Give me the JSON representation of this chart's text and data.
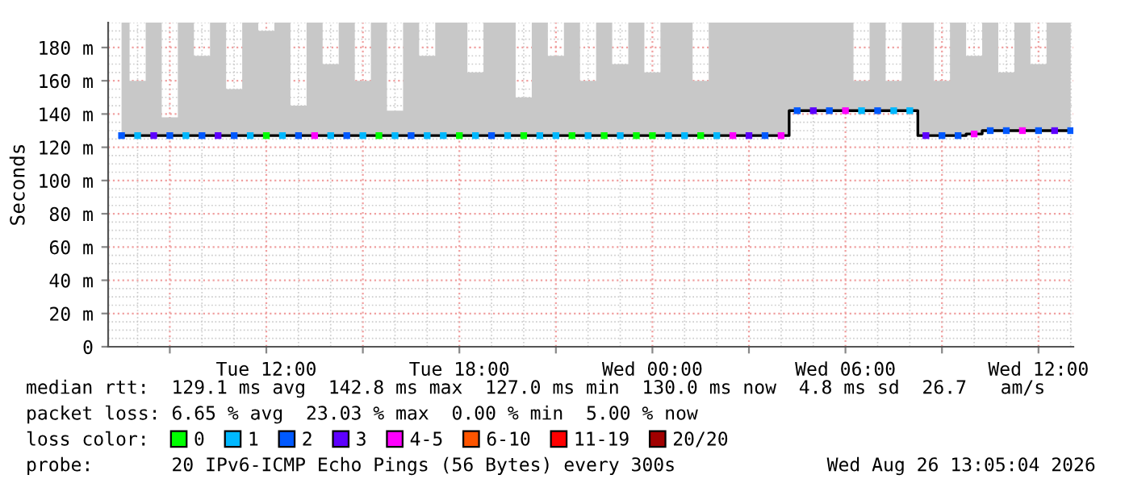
{
  "chart_data": {
    "type": "step",
    "ylabel": "Seconds",
    "legend_title": "loss color:",
    "legend": "bottom",
    "grid": true,
    "xlim": [
      "2026-08-25T07:05",
      "2026-08-26T13:05"
    ],
    "ylim": [
      0,
      195
    ],
    "xticks": [
      {
        "value": "2026-08-25T09:00",
        "label": null
      },
      {
        "value": "2026-08-25T12:00",
        "label": "Tue 12:00"
      },
      {
        "value": "2026-08-25T15:00",
        "label": null
      },
      {
        "value": "2026-08-25T18:00",
        "label": "Tue 18:00"
      },
      {
        "value": "2026-08-25T21:00",
        "label": null
      },
      {
        "value": "2026-08-26T00:00",
        "label": "Wed 00:00"
      },
      {
        "value": "2026-08-26T03:00",
        "label": null
      },
      {
        "value": "2026-08-26T06:00",
        "label": "Wed 06:00"
      },
      {
        "value": "2026-08-26T09:00",
        "label": null
      },
      {
        "value": "2026-08-26T12:00",
        "label": "Wed 12:00"
      }
    ],
    "yticks": [
      0,
      {
        "value": 20,
        "label": "20 m"
      },
      {
        "value": 40,
        "label": "40 m"
      },
      {
        "value": 60,
        "label": "60 m"
      },
      {
        "value": 80,
        "label": "80 m"
      },
      {
        "value": 100,
        "label": "100 m"
      },
      {
        "value": 120,
        "label": "120 m"
      },
      {
        "value": 140,
        "label": "140 m"
      },
      {
        "value": 160,
        "label": "160 m"
      },
      {
        "value": 180,
        "label": "180 m"
      }
    ],
    "series": [
      {
        "color": "#000000",
        "x": [
          "2026-08-25T07:30",
          "2026-08-25T08:00",
          "2026-08-25T08:30",
          "2026-08-25T09:00",
          "2026-08-25T09:30",
          "2026-08-25T10:00",
          "2026-08-25T10:30",
          "2026-08-25T11:00",
          "2026-08-25T11:30",
          "2026-08-25T12:00",
          "2026-08-25T12:30",
          "2026-08-25T13:00",
          "2026-08-25T13:30",
          "2026-08-25T14:00",
          "2026-08-25T14:30",
          "2026-08-25T15:00",
          "2026-08-25T15:30",
          "2026-08-25T16:00",
          "2026-08-25T16:30",
          "2026-08-25T17:00",
          "2026-08-25T17:30",
          "2026-08-25T18:00",
          "2026-08-25T18:30",
          "2026-08-25T19:00",
          "2026-08-25T19:30",
          "2026-08-25T20:00",
          "2026-08-25T20:30",
          "2026-08-25T21:00",
          "2026-08-25T21:30",
          "2026-08-25T22:00",
          "2026-08-25T22:30",
          "2026-08-25T23:00",
          "2026-08-25T23:30",
          "2026-08-26T00:00",
          "2026-08-26T00:30",
          "2026-08-26T01:00",
          "2026-08-26T01:30",
          "2026-08-26T02:00",
          "2026-08-26T02:30",
          "2026-08-26T03:00",
          "2026-08-26T03:30",
          "2026-08-26T04:00",
          "2026-08-26T04:30",
          "2026-08-26T05:00",
          "2026-08-26T05:30",
          "2026-08-26T06:00",
          "2026-08-26T06:30",
          "2026-08-26T07:00",
          "2026-08-26T07:30",
          "2026-08-26T08:00",
          "2026-08-26T08:30",
          "2026-08-26T09:00",
          "2026-08-26T09:30",
          "2026-08-26T10:00",
          "2026-08-26T10:30",
          "2026-08-26T11:00",
          "2026-08-26T11:30",
          "2026-08-26T12:00",
          "2026-08-26T12:30",
          "2026-08-26T13:00"
        ],
        "values": [
          127,
          127,
          127,
          127,
          127,
          127,
          127,
          127,
          127,
          127,
          127,
          127,
          127,
          127,
          127,
          127,
          127,
          127,
          127,
          127,
          127,
          127,
          127,
          127,
          127,
          127,
          127,
          127,
          127,
          127,
          127,
          127,
          127,
          127,
          127,
          127,
          127,
          127,
          127,
          127,
          127,
          127,
          142,
          142,
          142,
          142,
          142,
          142,
          142,
          142,
          127,
          127,
          127,
          128,
          130,
          130,
          130,
          130,
          130,
          130
        ],
        "lower": [
          127,
          127,
          127,
          127,
          127,
          127,
          127,
          127,
          127,
          127,
          127,
          127,
          127,
          127,
          127,
          127,
          127,
          127,
          127,
          127,
          127,
          127,
          127,
          127,
          127,
          127,
          127,
          127,
          127,
          127,
          127,
          127,
          127,
          127,
          127,
          127,
          127,
          127,
          127,
          127,
          127,
          127,
          142,
          142,
          142,
          142,
          142,
          142,
          142,
          142,
          127,
          127,
          127,
          128,
          130,
          130,
          130,
          130,
          130,
          130
        ],
        "upper": [
          195,
          160,
          195,
          138,
          195,
          175,
          195,
          155,
          195,
          190,
          195,
          145,
          195,
          170,
          195,
          160,
          195,
          142,
          195,
          175,
          195,
          195,
          165,
          195,
          195,
          150,
          195,
          175,
          195,
          160,
          195,
          170,
          195,
          165,
          195,
          195,
          160,
          195,
          195,
          195,
          195,
          195,
          195,
          195,
          195,
          195,
          160,
          195,
          160,
          195,
          195,
          160,
          195,
          175,
          195,
          165,
          195,
          170,
          195,
          195
        ]
      },
      {
        "type": "scatter",
        "name": "0",
        "color": "#00ff00",
        "marker": "square",
        "x": [
          "2026-08-25T12:00",
          "2026-08-25T15:30",
          "2026-08-25T18:00",
          "2026-08-25T20:00",
          "2026-08-25T21:30",
          "2026-08-25T22:30",
          "2026-08-25T23:30",
          "2026-08-26T00:00",
          "2026-08-26T01:30"
        ],
        "values": [
          127,
          127,
          127,
          127,
          127,
          127,
          127,
          127,
          127
        ]
      },
      {
        "type": "scatter",
        "name": "1",
        "color": "#00b8ff",
        "marker": "square",
        "x": [
          "2026-08-25T08:00",
          "2026-08-25T09:30",
          "2026-08-25T11:30",
          "2026-08-25T12:30",
          "2026-08-25T14:00",
          "2026-08-25T15:00",
          "2026-08-25T16:00",
          "2026-08-25T17:00",
          "2026-08-25T17:30",
          "2026-08-25T18:30",
          "2026-08-25T19:30",
          "2026-08-25T20:30",
          "2026-08-25T21:00",
          "2026-08-25T22:00",
          "2026-08-25T23:00",
          "2026-08-26T00:30",
          "2026-08-26T01:00",
          "2026-08-26T02:00",
          "2026-08-26T06:30",
          "2026-08-26T07:30",
          "2026-08-26T08:00"
        ],
        "values": [
          127,
          127,
          127,
          127,
          127,
          127,
          127,
          127,
          127,
          127,
          127,
          127,
          127,
          127,
          127,
          127,
          127,
          127,
          142,
          142,
          142
        ]
      },
      {
        "type": "scatter",
        "name": "2",
        "color": "#0059ff",
        "marker": "square",
        "x": [
          "2026-08-25T07:30",
          "2026-08-25T09:00",
          "2026-08-25T10:00",
          "2026-08-25T11:00",
          "2026-08-25T13:00",
          "2026-08-25T14:30",
          "2026-08-25T16:30",
          "2026-08-25T19:00",
          "2026-08-26T03:30",
          "2026-08-26T04:30",
          "2026-08-26T05:30",
          "2026-08-26T07:00",
          "2026-08-26T09:00",
          "2026-08-26T09:30",
          "2026-08-26T10:30",
          "2026-08-26T11:00",
          "2026-08-26T12:00",
          "2026-08-26T13:00"
        ],
        "values": [
          127,
          127,
          127,
          127,
          127,
          127,
          127,
          127,
          127,
          142,
          142,
          142,
          127,
          127,
          130,
          130,
          130,
          130
        ]
      },
      {
        "type": "scatter",
        "name": "3",
        "color": "#5e00ff",
        "marker": "square",
        "x": [
          "2026-08-25T08:30",
          "2026-08-25T10:30",
          "2026-08-26T03:00",
          "2026-08-26T05:00",
          "2026-08-26T08:30",
          "2026-08-26T12:30"
        ],
        "values": [
          127,
          127,
          127,
          142,
          127,
          130
        ]
      },
      {
        "type": "scatter",
        "name": "4-5",
        "color": "#ff00fe",
        "marker": "square",
        "x": [
          "2026-08-25T13:30",
          "2026-08-26T02:30",
          "2026-08-26T04:00",
          "2026-08-26T06:00",
          "2026-08-26T10:00",
          "2026-08-26T11:30"
        ],
        "values": [
          127,
          127,
          127,
          142,
          128,
          130
        ]
      },
      {
        "type": "scatter",
        "name": "6-10",
        "color": "#ff5500",
        "marker": "square"
      },
      {
        "type": "scatter",
        "name": "11-19",
        "color": "#ff0000",
        "marker": "square"
      },
      {
        "type": "scatter",
        "name": "20/20",
        "color": "#a10000",
        "marker": "square"
      }
    ],
    "annotations": [
      "median rtt:  129.1 ms avg  142.8 ms max  127.0 ms min  130.0 ms now  4.8 ms sd  26.7   am/s",
      "packet loss: 6.65 % avg  23.03 % max  0.00 % min  5.00 % now",
      "probe:       20 IPv6-ICMP Echo Pings (56 Bytes) every 300s",
      "Wed Aug 26 13:05:04 2026"
    ]
  }
}
